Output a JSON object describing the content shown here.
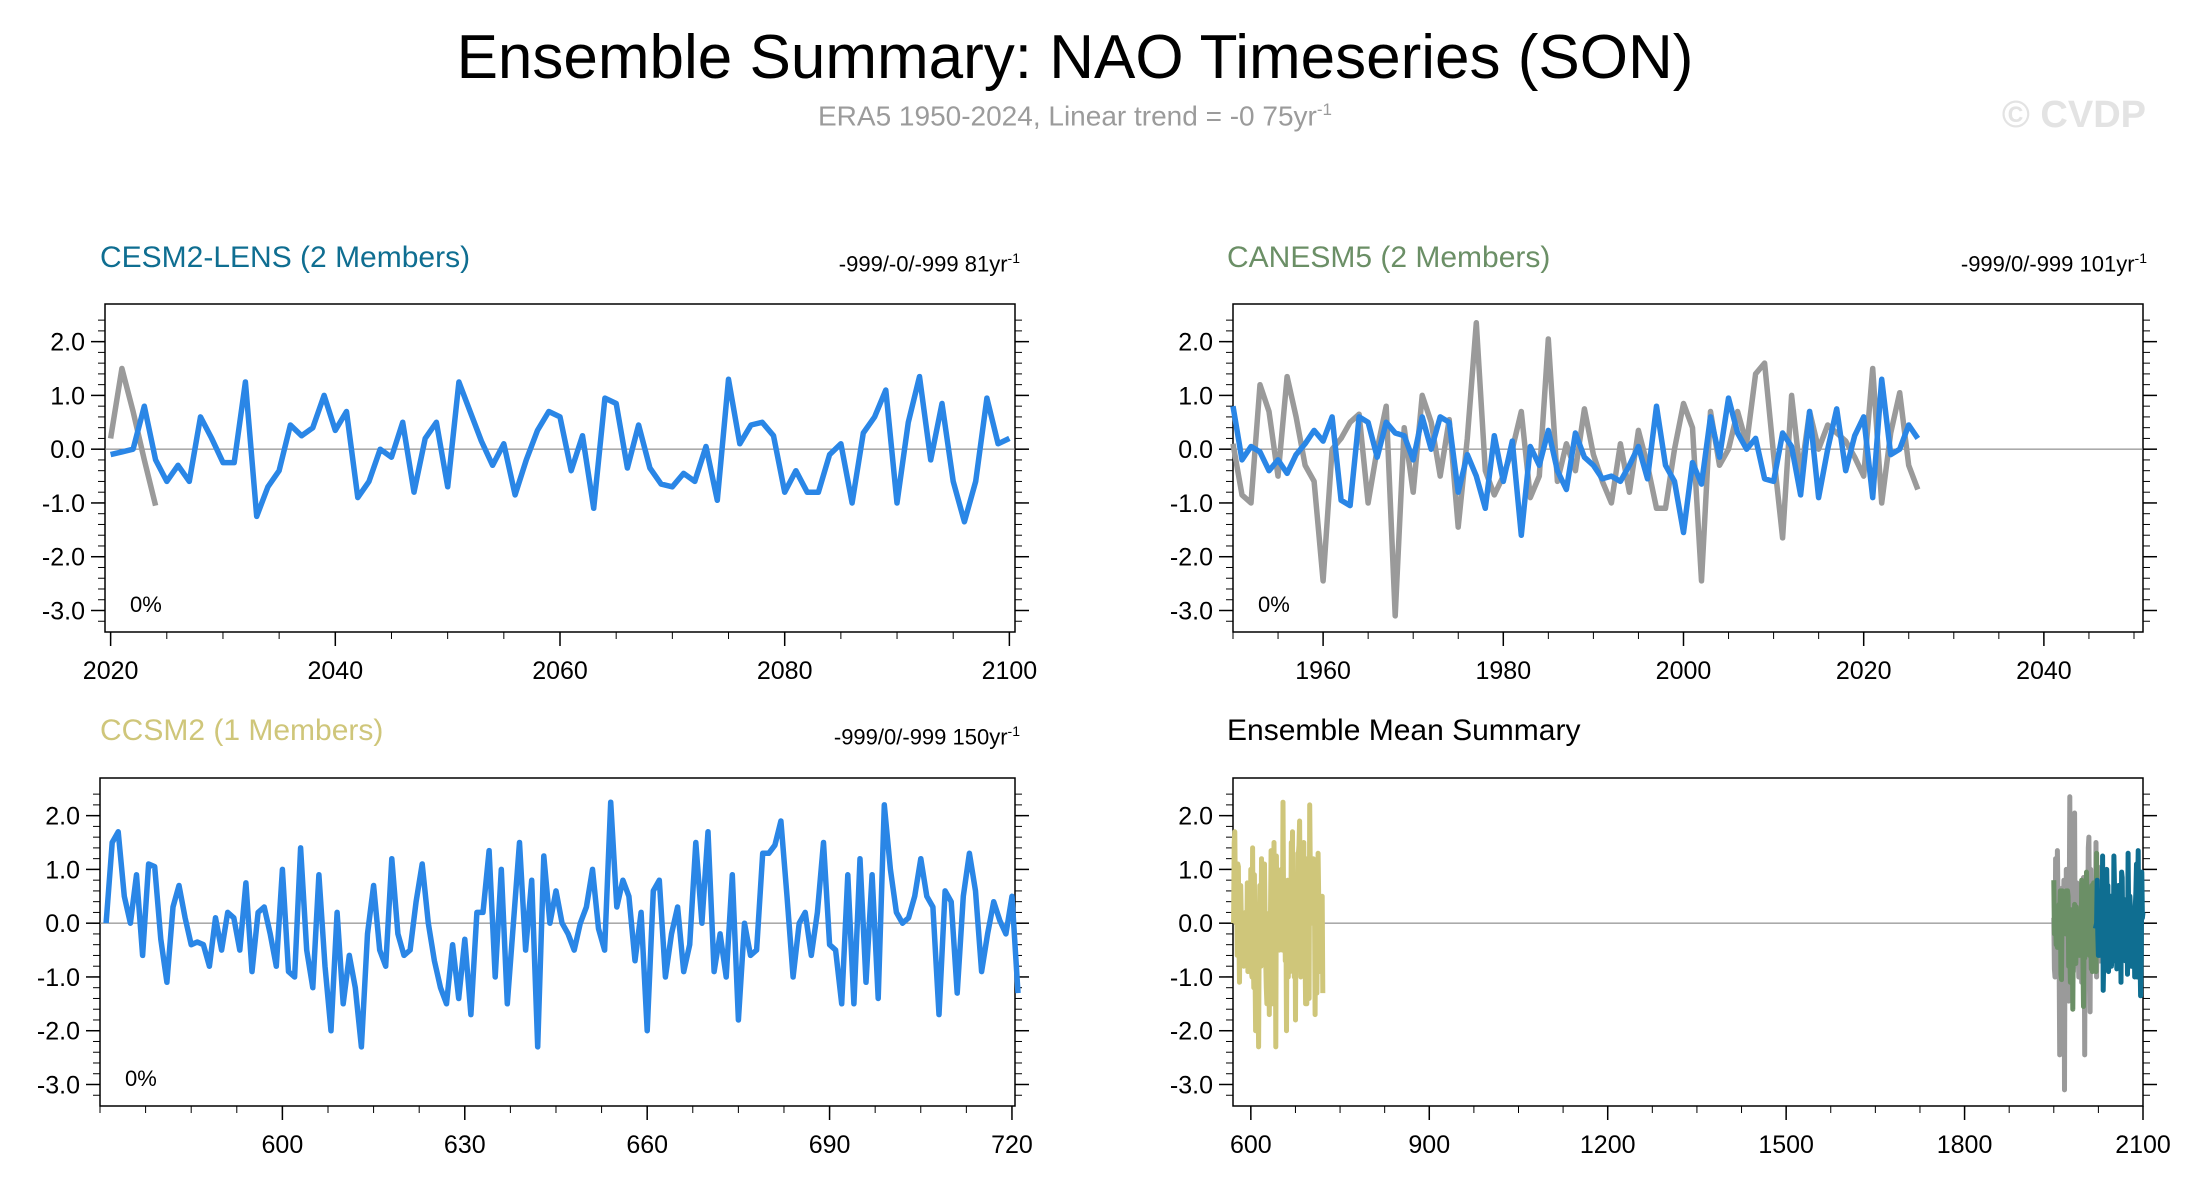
{
  "title": "Ensemble Summary: NAO Timeseries (SON)",
  "subtitle": {
    "text": "ERA5 1950-2024, Linear trend = -0 75yr",
    "sup": "-1"
  },
  "watermark": "© CVDP",
  "colors": {
    "obs": "#9a9a9a",
    "model": "#2a86e6",
    "cesm2": "#0f6e91",
    "canesm5": "#6b8f66",
    "ccsm2": "#cfc67a",
    "axis": "#000000"
  },
  "chart_data": [
    {
      "type": "line",
      "id": "cesm2",
      "title": "CESM2-LENS (2 Members)",
      "title_color": "#0f6e91",
      "trend": {
        "text": "-999/-0/-999 81yr",
        "sup": "-1"
      },
      "percent_label": "0%",
      "xlim": [
        2019.5,
        2100.5
      ],
      "ylim": [
        -3.4,
        2.7
      ],
      "xticks": [
        2020,
        2040,
        2060,
        2080,
        2100
      ],
      "xtick_labels": [
        "2020",
        "2040",
        "2060",
        "2080",
        "2100"
      ],
      "yticks": [
        2.0,
        1.0,
        0.0,
        -1.0,
        -2.0,
        -3.0
      ],
      "ytick_labels": [
        "2.0",
        "1.0",
        "0.0",
        "-1.0",
        "-2.0",
        "-3.0"
      ],
      "series": [
        {
          "name": "ERA5",
          "color": "#9a9a9a",
          "x": [
            2020,
            2021,
            2022,
            2023,
            2024
          ],
          "values": [
            0.2,
            1.5,
            0.7,
            -0.2,
            -1.05
          ]
        },
        {
          "name": "CESM2-LENS",
          "color": "#2a86e6",
          "x_start": 2020,
          "values": [
            -0.1,
            -0.05,
            0.0,
            0.8,
            -0.2,
            -0.6,
            -0.3,
            -0.6,
            0.6,
            0.2,
            -0.25,
            -0.25,
            1.25,
            -1.25,
            -0.7,
            -0.4,
            0.45,
            0.25,
            0.4,
            1.0,
            0.35,
            0.7,
            -0.9,
            -0.6,
            0.0,
            -0.15,
            0.5,
            -0.8,
            0.2,
            0.5,
            -0.7,
            1.25,
            0.7,
            0.15,
            -0.3,
            0.1,
            -0.85,
            -0.2,
            0.35,
            0.7,
            0.6,
            -0.4,
            0.25,
            -1.1,
            0.95,
            0.85,
            -0.35,
            0.45,
            -0.35,
            -0.65,
            -0.7,
            -0.45,
            -0.6,
            0.05,
            -0.95,
            1.3,
            0.1,
            0.45,
            0.5,
            0.25,
            -0.8,
            -0.4,
            -0.8,
            -0.8,
            -0.1,
            0.1,
            -1.0,
            0.3,
            0.6,
            1.1,
            -1.0,
            0.5,
            1.35,
            -0.2,
            0.85,
            -0.6,
            -1.35,
            -0.6,
            0.95,
            0.1,
            0.2
          ]
        }
      ]
    },
    {
      "type": "line",
      "id": "canesm5",
      "title": "CANESM5 (2 Members)",
      "title_color": "#6b8f66",
      "trend": {
        "text": "-999/0/-999 101yr",
        "sup": "-1"
      },
      "percent_label": "0%",
      "xlim": [
        1950,
        2051
      ],
      "ylim": [
        -3.4,
        2.7
      ],
      "xticks": [
        1960,
        1980,
        2000,
        2020,
        2040
      ],
      "xtick_labels": [
        "1960",
        "1980",
        "2000",
        "2020",
        "2040"
      ],
      "yticks": [
        2.0,
        1.0,
        0.0,
        -1.0,
        -2.0,
        -3.0
      ],
      "ytick_labels": [
        "2.0",
        "1.0",
        "0.0",
        "-1.0",
        "-2.0",
        "-3.0"
      ],
      "series": [
        {
          "name": "ERA5",
          "color": "#9a9a9a",
          "x_start": 1950,
          "values": [
            0.1,
            -0.85,
            -1.0,
            1.2,
            0.7,
            -0.5,
            1.35,
            0.6,
            -0.3,
            -0.6,
            -2.45,
            0.0,
            0.2,
            0.5,
            0.65,
            -1.0,
            0.0,
            0.8,
            -3.1,
            0.4,
            -0.8,
            1.0,
            0.5,
            -0.5,
            0.55,
            -1.45,
            0.2,
            2.35,
            -0.4,
            -0.85,
            -0.5,
            0.0,
            0.7,
            -0.9,
            -0.5,
            2.05,
            -0.6,
            0.1,
            -0.4,
            0.75,
            -0.1,
            -0.6,
            -1.0,
            0.1,
            -0.8,
            0.35,
            -0.3,
            -1.1,
            -1.1,
            0.0,
            0.85,
            0.4,
            -2.45,
            0.7,
            -0.3,
            0.0,
            0.7,
            0.1,
            1.4,
            1.6,
            -0.1,
            -1.65,
            1.0,
            -0.5,
            0.7,
            0.0,
            0.45,
            0.3,
            0.15,
            -0.15,
            -0.5,
            1.5,
            -1.0,
            0.3,
            1.05,
            -0.3,
            -0.75
          ]
        },
        {
          "name": "CANESM5",
          "color": "#2a86e6",
          "x_start": 1950,
          "values": [
            0.8,
            -0.2,
            0.05,
            -0.05,
            -0.4,
            -0.2,
            -0.45,
            -0.1,
            0.1,
            0.35,
            0.15,
            0.6,
            -0.95,
            -1.05,
            0.6,
            0.5,
            -0.15,
            0.5,
            0.3,
            0.25,
            -0.2,
            0.6,
            0.0,
            0.6,
            0.5,
            -0.8,
            -0.1,
            -0.5,
            -1.1,
            0.25,
            -0.6,
            0.15,
            -1.6,
            0.05,
            -0.3,
            0.35,
            -0.4,
            -0.75,
            0.3,
            -0.15,
            -0.3,
            -0.55,
            -0.5,
            -0.6,
            -0.3,
            0.05,
            -0.55,
            0.8,
            -0.3,
            -0.6,
            -1.55,
            -0.25,
            -0.65,
            0.6,
            -0.15,
            0.95,
            0.3,
            0.0,
            0.2,
            -0.55,
            -0.6,
            0.3,
            0.05,
            -0.85,
            0.7,
            -0.9,
            0.0,
            0.75,
            -0.4,
            0.25,
            0.6,
            -0.9,
            1.3,
            -0.1,
            0.0,
            0.45,
            0.2
          ]
        }
      ]
    },
    {
      "type": "line",
      "id": "ccsm2",
      "title": "CCSM2 (1 Members)",
      "title_color": "#cfc67a",
      "trend": {
        "text": "-999/0/-999 150yr",
        "sup": "-1"
      },
      "percent_label": "0%",
      "xlim": [
        570,
        720.5
      ],
      "ylim": [
        -3.4,
        2.7
      ],
      "xticks": [
        600,
        630,
        660,
        690,
        720
      ],
      "xtick_labels": [
        "600",
        "630",
        "660",
        "690",
        "720"
      ],
      "yticks": [
        2.0,
        1.0,
        0.0,
        -1.0,
        -2.0,
        -3.0
      ],
      "ytick_labels": [
        "2.0",
        "1.0",
        "0.0",
        "-1.0",
        "-2.0",
        "-3.0"
      ],
      "series": [
        {
          "name": "CCSM2",
          "color": "#2a86e6",
          "x_start": 571,
          "values": [
            0.0,
            1.5,
            1.7,
            0.5,
            0.0,
            0.9,
            -0.6,
            1.1,
            1.05,
            -0.3,
            -1.1,
            0.3,
            0.7,
            0.1,
            -0.4,
            -0.35,
            -0.4,
            -0.8,
            0.1,
            -0.5,
            0.2,
            0.1,
            -0.5,
            0.75,
            -0.9,
            0.2,
            0.3,
            -0.2,
            -0.8,
            1.0,
            -0.9,
            -1.0,
            1.4,
            -0.5,
            -1.2,
            0.9,
            -0.8,
            -2.0,
            0.2,
            -1.5,
            -0.6,
            -1.2,
            -2.3,
            -0.2,
            0.7,
            -0.5,
            -0.8,
            1.2,
            -0.2,
            -0.6,
            -0.5,
            0.4,
            1.1,
            0.0,
            -0.7,
            -1.2,
            -1.5,
            -0.4,
            -1.4,
            -0.3,
            -1.7,
            0.2,
            0.2,
            1.35,
            -1.0,
            1.0,
            -1.5,
            0.0,
            1.5,
            -0.5,
            0.8,
            -2.3,
            1.25,
            0.0,
            0.6,
            0.0,
            -0.2,
            -0.5,
            0.0,
            0.3,
            1.0,
            -0.1,
            -0.5,
            2.25,
            0.3,
            0.8,
            0.5,
            -0.7,
            0.2,
            -2.0,
            0.6,
            0.8,
            -1.0,
            -0.2,
            0.3,
            -0.9,
            -0.4,
            1.5,
            0.0,
            1.7,
            -0.9,
            -0.2,
            -1.0,
            0.9,
            -1.8,
            0.0,
            -0.6,
            -0.5,
            1.3,
            1.3,
            1.45,
            1.9,
            0.5,
            -1.0,
            0.0,
            0.2,
            -0.6,
            0.2,
            1.5,
            -0.4,
            -0.5,
            -1.5,
            0.9,
            -1.5,
            1.2,
            -1.1,
            0.9,
            -1.4,
            2.2,
            1.0,
            0.2,
            0.0,
            0.1,
            0.5,
            1.2,
            0.5,
            0.3,
            -1.7,
            0.6,
            0.4,
            -1.3,
            0.5,
            1.3,
            0.6,
            -0.9,
            -0.2,
            0.4,
            0.05,
            -0.2,
            0.5,
            -1.3
          ]
        }
      ]
    },
    {
      "type": "line",
      "id": "ensmean",
      "title": "Ensemble Mean Summary",
      "title_color": "#000000",
      "xlim": [
        570,
        2100
      ],
      "ylim": [
        -3.4,
        2.7
      ],
      "xticks": [
        600,
        900,
        1200,
        1500,
        1800,
        2100
      ],
      "xtick_labels": [
        "600",
        "900",
        "1200",
        "1500",
        "1800",
        "2100"
      ],
      "yticks": [
        2.0,
        1.0,
        0.0,
        -1.0,
        -2.0,
        -3.0
      ],
      "ytick_labels": [
        "2.0",
        "1.0",
        "0.0",
        "-1.0",
        "-2.0",
        "-3.0"
      ],
      "series": [
        {
          "name": "CCSM2",
          "color": "#cfc67a",
          "x_start": 571,
          "ref": "ccsm2"
        },
        {
          "name": "ERA5",
          "color": "#9a9a9a",
          "x_start": 1950,
          "ref": "era5"
        },
        {
          "name": "CANESM5",
          "color": "#6b8f66",
          "x_start": 1950,
          "ref": "canesm5"
        },
        {
          "name": "CESM2-LENS",
          "color": "#0f6e91",
          "x_start": 2020,
          "ref": "cesm2"
        }
      ]
    }
  ]
}
